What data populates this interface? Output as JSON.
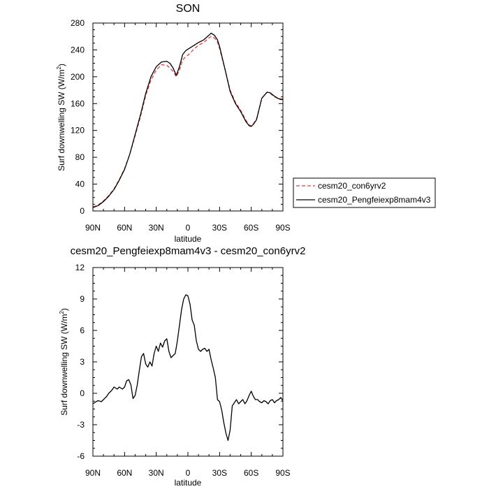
{
  "chart_data": [
    {
      "type": "line",
      "title": "SON",
      "xlabel": "latitude",
      "ylabel": "Surf downwelling SW (W/m",
      "ylabel_sup": "2",
      "ylabel_close": ")",
      "xlim": [
        -90,
        90
      ],
      "ylim": [
        0,
        280
      ],
      "x_ticks": [
        -90,
        -60,
        -30,
        0,
        30,
        60,
        90
      ],
      "x_tick_labels": [
        "90N",
        "60N",
        "30N",
        "0",
        "30S",
        "60S",
        "90S"
      ],
      "y_ticks": [
        0,
        40,
        80,
        120,
        160,
        200,
        240,
        280
      ],
      "y_tick_labels": [
        "0",
        "40",
        "80",
        "120",
        "160",
        "200",
        "240",
        "280"
      ],
      "x": [
        -90,
        -85,
        -80,
        -75,
        -70,
        -65,
        -60,
        -55,
        -50,
        -45,
        -40,
        -35,
        -30,
        -25,
        -20,
        -17,
        -14,
        -11,
        -8,
        -5,
        -2,
        0,
        5,
        10,
        15,
        20,
        22,
        25,
        28,
        30,
        35,
        40,
        45,
        50,
        55,
        58,
        60,
        62,
        65,
        70,
        75,
        78,
        82,
        85,
        88,
        90
      ],
      "series": [
        {
          "name": "cesm20_con6yrv2",
          "color": "#e83a3a",
          "dash": "dashed",
          "values": [
            6,
            9,
            15,
            23,
            33,
            47,
            63,
            85,
            112,
            140,
            172,
            195,
            210,
            218,
            217,
            213,
            208,
            200,
            210,
            225,
            230,
            232,
            240,
            247,
            251,
            258,
            260,
            258,
            252,
            242,
            212,
            180,
            162,
            150,
            135,
            128,
            127,
            130,
            137,
            168,
            177,
            175,
            170,
            168,
            167,
            167
          ]
        },
        {
          "name": "cesm20_Pengfeiexp8mam4v3",
          "color": "#000000",
          "dash": "solid",
          "values": [
            5,
            8,
            14,
            22,
            32,
            46,
            62,
            85,
            114,
            143,
            175,
            200,
            215,
            222,
            223,
            220,
            213,
            202,
            215,
            233,
            239,
            241,
            246,
            251,
            255,
            262,
            265,
            262,
            255,
            245,
            212,
            178,
            160,
            148,
            133,
            127,
            126,
            129,
            136,
            168,
            177,
            176,
            171,
            168,
            166,
            166
          ]
        }
      ],
      "legend": "right-outside"
    },
    {
      "type": "line",
      "title": "cesm20_Pengfeiexp8mam4v3 - cesm20_con6yrv2",
      "xlabel": "latitude",
      "ylabel": "Surf downwelling SW (W/m",
      "ylabel_sup": "2",
      "ylabel_close": ")",
      "xlim": [
        -90,
        90
      ],
      "ylim": [
        -6,
        12
      ],
      "x_ticks": [
        -90,
        -60,
        -30,
        0,
        30,
        60,
        90
      ],
      "x_tick_labels": [
        "90N",
        "60N",
        "30N",
        "0",
        "30S",
        "60S",
        "90S"
      ],
      "y_ticks": [
        -6,
        -3,
        0,
        3,
        6,
        9,
        12
      ],
      "y_tick_labels": [
        "-6",
        "-3",
        "0",
        "3",
        "6",
        "9",
        "12"
      ],
      "x": [
        -90,
        -87,
        -85,
        -82,
        -80,
        -77,
        -75,
        -72,
        -70,
        -67,
        -65,
        -62,
        -60,
        -58,
        -56,
        -54,
        -52,
        -50,
        -48,
        -46,
        -44,
        -42,
        -40,
        -38,
        -36,
        -34,
        -32,
        -30,
        -28,
        -26,
        -24,
        -22,
        -20,
        -18,
        -16,
        -14,
        -12,
        -10,
        -8,
        -6,
        -4,
        -2,
        0,
        2,
        4,
        6,
        8,
        10,
        12,
        14,
        16,
        18,
        20,
        22,
        24,
        26,
        28,
        30,
        32,
        34,
        36,
        38,
        40,
        42,
        44,
        46,
        48,
        50,
        52,
        54,
        56,
        58,
        60,
        62,
        64,
        66,
        68,
        70,
        72,
        74,
        76,
        78,
        80,
        82,
        84,
        86,
        88,
        90
      ],
      "series": [
        {
          "name": "difference",
          "color": "#000000",
          "dash": "solid",
          "values": [
            -1.0,
            -0.8,
            -0.7,
            -0.8,
            -0.6,
            -0.3,
            0.0,
            0.3,
            0.6,
            0.4,
            0.6,
            0.4,
            0.6,
            1.2,
            1.3,
            0.8,
            -0.5,
            -0.2,
            0.8,
            2.2,
            3.5,
            3.8,
            2.8,
            2.5,
            3.0,
            2.6,
            3.8,
            4.5,
            4.0,
            4.8,
            4.4,
            5.0,
            5.2,
            4.0,
            3.4,
            3.6,
            3.8,
            5.0,
            6.5,
            8.0,
            9.0,
            9.4,
            9.3,
            8.5,
            7.0,
            6.5,
            5.0,
            4.2,
            4.0,
            4.2,
            4.3,
            4.0,
            4.2,
            3.2,
            2.4,
            1.5,
            -0.6,
            -0.8,
            -1.6,
            -2.8,
            -3.8,
            -4.5,
            -3.5,
            -1.2,
            -0.9,
            -0.6,
            -1.0,
            -0.8,
            -0.6,
            -1.0,
            -0.7,
            -0.2,
            0.2,
            -0.3,
            -0.6,
            -0.6,
            -0.8,
            -0.9,
            -0.7,
            -0.8,
            -1.0,
            -0.7,
            -0.6,
            -0.9,
            -0.7,
            -0.6,
            -0.4,
            -0.7
          ]
        }
      ]
    }
  ]
}
